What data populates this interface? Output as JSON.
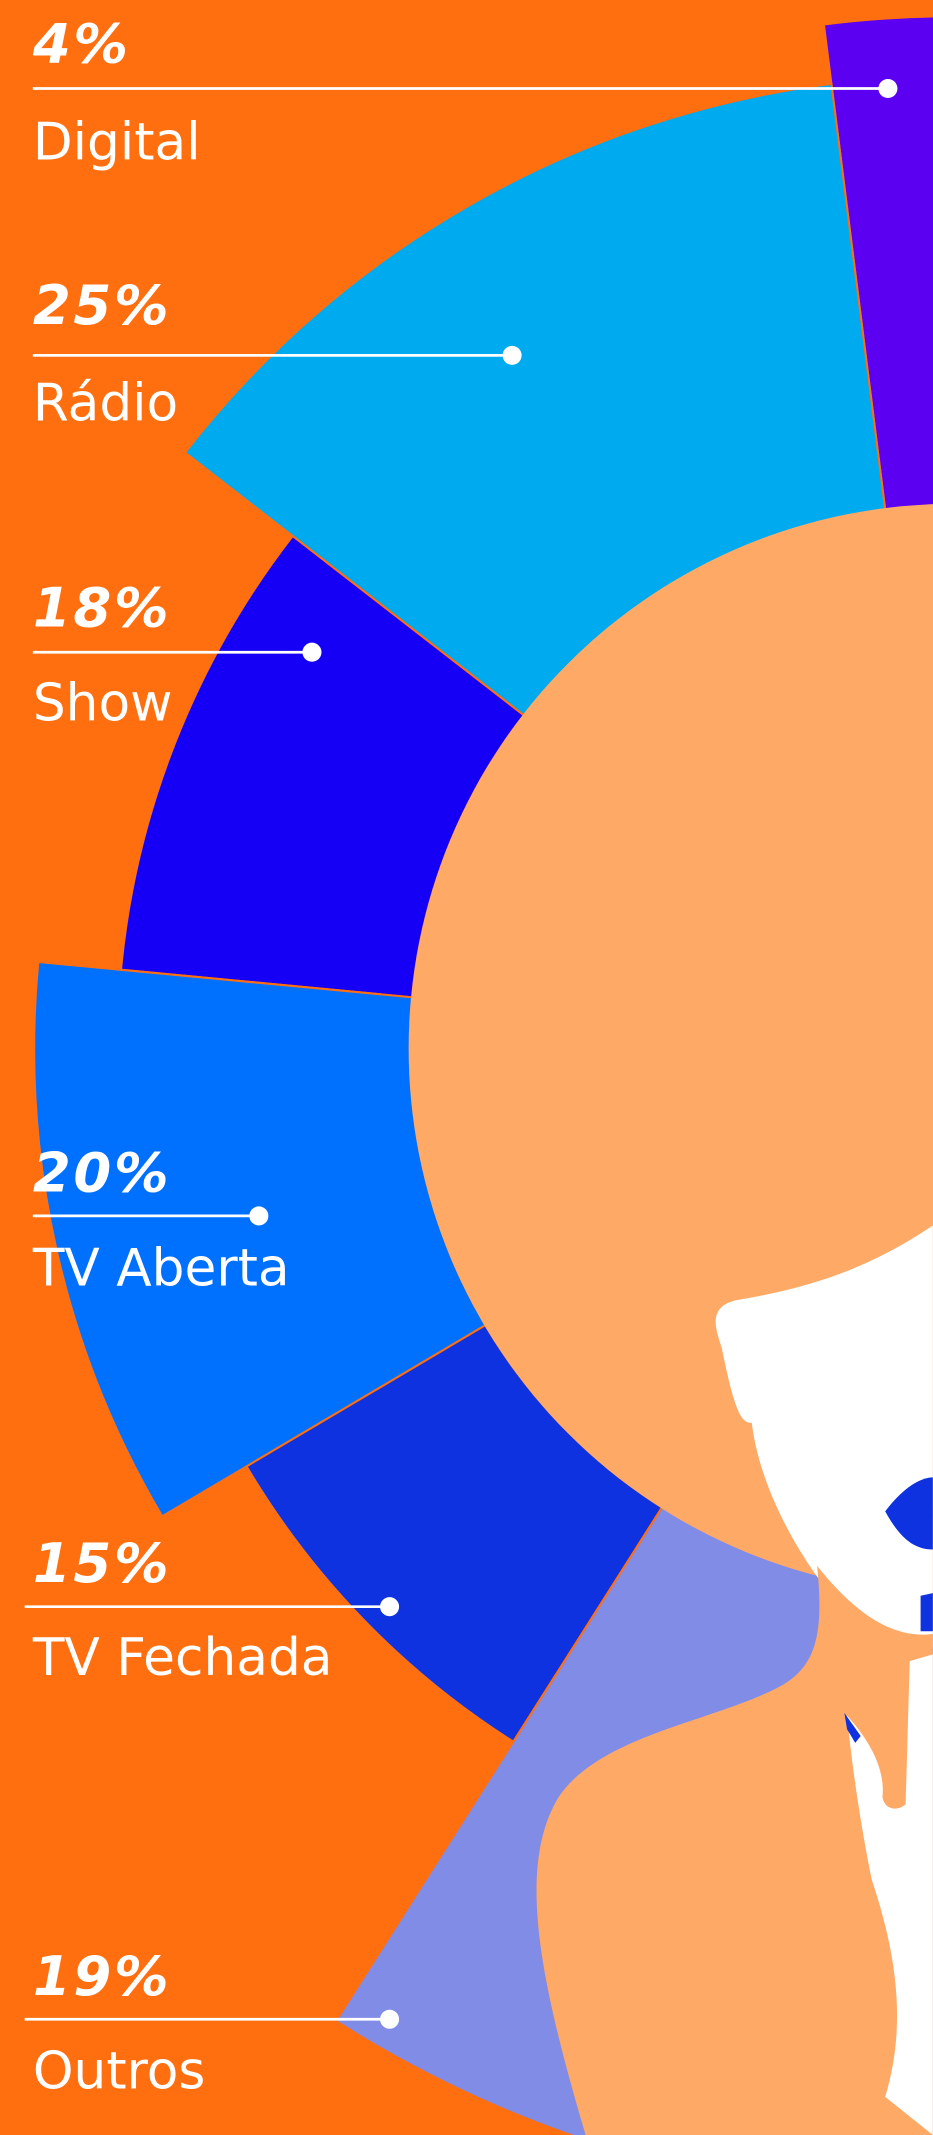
{
  "chart_data": {
    "type": "pie",
    "categories": [
      "Digital",
      "Rádio",
      "Show",
      "TV Aberta",
      "TV Fechada",
      "Outros"
    ],
    "values": [
      4,
      25,
      18,
      20,
      15,
      19
    ],
    "value_labels": [
      "4%",
      "25%",
      "18%",
      "20%",
      "15%",
      "19%"
    ],
    "colors": [
      "#5B00F0",
      "#00AAEE",
      "#1500F5",
      "#0070FF",
      "#0F32E0",
      "#818CE6"
    ]
  }
}
